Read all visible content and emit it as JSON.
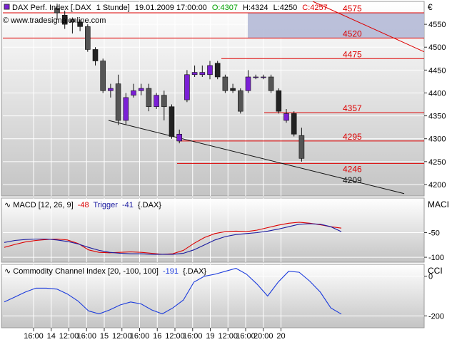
{
  "header": {
    "instrument": "DAX Perf. Index [.DAX",
    "interval": "1 Stunde]",
    "datetime": "19.01.2009 17:00:00",
    "open": "O:4307",
    "high": "H:4324",
    "low": "L:4250",
    "close": "C:4257",
    "watermark": "www.tradesignalonline.com",
    "currency": "€"
  },
  "colors": {
    "panel_bg_top": "#ffffff",
    "panel_bg_bottom": "#c8c8c8",
    "bull_candle": "#7b1fd6",
    "bear_candle_light": "#dddddd",
    "bear_candle_dark": "#222222",
    "level_line": "#dd0000",
    "zone_fill": "#b4b9d6",
    "macd_line": "#1a1aa0",
    "trigger_line": "#dd0000",
    "cci_line": "#1a3adc",
    "open_color": "#00a000",
    "close_color": "#dd0000"
  },
  "chart_data": [
    {
      "type": "candlestick",
      "title": "DAX Perf. Index [.DAX 1 Stunde] 19.01.2009 17:00:00",
      "y_ticks": [
        4550,
        4500,
        4450,
        4400,
        4350,
        4300,
        4250,
        4200
      ],
      "ylim": [
        4175,
        4600
      ],
      "grid": true,
      "candles": [
        {
          "o": 4585,
          "h": 4595,
          "l": 4560,
          "c": 4575
        },
        {
          "o": 4570,
          "h": 4580,
          "l": 4540,
          "c": 4550
        },
        {
          "o": 4560,
          "h": 4565,
          "l": 4530,
          "c": 4555
        },
        {
          "o": 4555,
          "h": 4560,
          "l": 4535,
          "c": 4545
        },
        {
          "o": 4545,
          "h": 4550,
          "l": 4490,
          "c": 4495
        },
        {
          "o": 4495,
          "h": 4500,
          "l": 4460,
          "c": 4470
        },
        {
          "o": 4470,
          "h": 4475,
          "l": 4400,
          "c": 4405
        },
        {
          "o": 4405,
          "h": 4420,
          "l": 4390,
          "c": 4410
        },
        {
          "o": 4420,
          "h": 4440,
          "l": 4330,
          "c": 4340
        },
        {
          "o": 4340,
          "h": 4400,
          "l": 4330,
          "c": 4390
        },
        {
          "o": 4395,
          "h": 4420,
          "l": 4390,
          "c": 4405
        },
        {
          "o": 4405,
          "h": 4420,
          "l": 4395,
          "c": 4410
        },
        {
          "o": 4410,
          "h": 4420,
          "l": 4360,
          "c": 4370
        },
        {
          "o": 4370,
          "h": 4400,
          "l": 4365,
          "c": 4395
        },
        {
          "o": 4395,
          "h": 4405,
          "l": 4340,
          "c": 4370
        },
        {
          "o": 4370,
          "h": 4375,
          "l": 4300,
          "c": 4305
        },
        {
          "o": 4295,
          "h": 4320,
          "l": 4290,
          "c": 4310
        },
        {
          "o": 4385,
          "h": 4450,
          "l": 4380,
          "c": 4440
        },
        {
          "o": 4440,
          "h": 4460,
          "l": 4435,
          "c": 4445
        },
        {
          "o": 4440,
          "h": 4460,
          "l": 4435,
          "c": 4445
        },
        {
          "o": 4440,
          "h": 4470,
          "l": 4430,
          "c": 4460
        },
        {
          "o": 4465,
          "h": 4470,
          "l": 4430,
          "c": 4435
        },
        {
          "o": 4435,
          "h": 4440,
          "l": 4400,
          "c": 4405
        },
        {
          "o": 4410,
          "h": 4420,
          "l": 4400,
          "c": 4405
        },
        {
          "o": 4405,
          "h": 4410,
          "l": 4355,
          "c": 4360
        },
        {
          "o": 4405,
          "h": 4450,
          "l": 4400,
          "c": 4435
        },
        {
          "o": 4435,
          "h": 4440,
          "l": 4430,
          "c": 4435
        },
        {
          "o": 4435,
          "h": 4440,
          "l": 4430,
          "c": 4435
        },
        {
          "o": 4435,
          "h": 4440,
          "l": 4400,
          "c": 4405
        },
        {
          "o": 4405,
          "h": 4410,
          "l": 4355,
          "c": 4360
        },
        {
          "o": 4340,
          "h": 4365,
          "l": 4335,
          "c": 4355
        },
        {
          "o": 4355,
          "h": 4360,
          "l": 4305,
          "c": 4310
        },
        {
          "o": 4307,
          "h": 4324,
          "l": 4250,
          "c": 4257
        }
      ],
      "levels": [
        {
          "value": 4575,
          "label": "4575"
        },
        {
          "value": 4520,
          "label": "4520"
        },
        {
          "value": 4475,
          "label": "4475"
        },
        {
          "value": 4357,
          "label": "4357"
        },
        {
          "value": 4295,
          "label": "4295"
        },
        {
          "value": 4246,
          "label": "4246"
        }
      ],
      "zone": {
        "from": 4520,
        "to": 4575
      },
      "annotations": [
        {
          "value": 4209,
          "label": "4209"
        }
      ]
    },
    {
      "type": "line",
      "title": "MACD [12, 26, 9] -48 Trigger -41 {.DAX}",
      "title_parts": {
        "name": "MACD [12, 26, 9]",
        "macd_value": "-48",
        "trigger_label": "Trigger",
        "trigger_value": "-41",
        "suffix": "{.DAX}"
      },
      "axis_label": "MACI",
      "y_ticks": [
        -50,
        -100
      ],
      "ylim": [
        -110,
        20
      ],
      "series": [
        {
          "name": "MACD",
          "values": [
            -70,
            -66,
            -64,
            -63,
            -63,
            -65,
            -68,
            -73,
            -80,
            -86,
            -90,
            -92,
            -93,
            -93,
            -94,
            -94,
            -94,
            -92,
            -85,
            -75,
            -65,
            -58,
            -54,
            -52,
            -50,
            -47,
            -43,
            -38,
            -33,
            -32,
            -33,
            -38,
            -48
          ]
        },
        {
          "name": "Trigger",
          "values": [
            -80,
            -74,
            -69,
            -66,
            -64,
            -63,
            -65,
            -72,
            -85,
            -90,
            -91,
            -90,
            -89,
            -90,
            -92,
            -94,
            -93,
            -86,
            -72,
            -60,
            -52,
            -48,
            -47,
            -48,
            -45,
            -40,
            -35,
            -31,
            -29,
            -31,
            -34,
            -38,
            -41
          ]
        }
      ]
    },
    {
      "type": "line",
      "title": "Commodity Channel Index [20, -100, 100] -191 {.DAX}",
      "title_parts": {
        "name": "Commodity Channel Index [20, -100, 100]",
        "value": "-191",
        "suffix": "{.DAX}"
      },
      "axis_label": "CCI",
      "y_ticks": [
        0,
        -200
      ],
      "ylim": [
        -260,
        60
      ],
      "series": [
        {
          "name": "CCI",
          "values": [
            -130,
            -105,
            -80,
            -60,
            -60,
            -65,
            -90,
            -125,
            -175,
            -190,
            -170,
            -145,
            -130,
            -140,
            -170,
            -190,
            -160,
            -120,
            -30,
            0,
            10,
            25,
            40,
            10,
            -40,
            -100,
            -30,
            25,
            20,
            -25,
            -80,
            -160,
            -191
          ]
        }
      ]
    }
  ],
  "x_axis": {
    "labels": [
      "16:00",
      "14",
      "12:00",
      "16:00",
      "15",
      "12:00",
      "16:00",
      "16",
      "12:00",
      "16:00",
      "19",
      "12:00",
      "16:00",
      "20:00",
      "20"
    ]
  }
}
